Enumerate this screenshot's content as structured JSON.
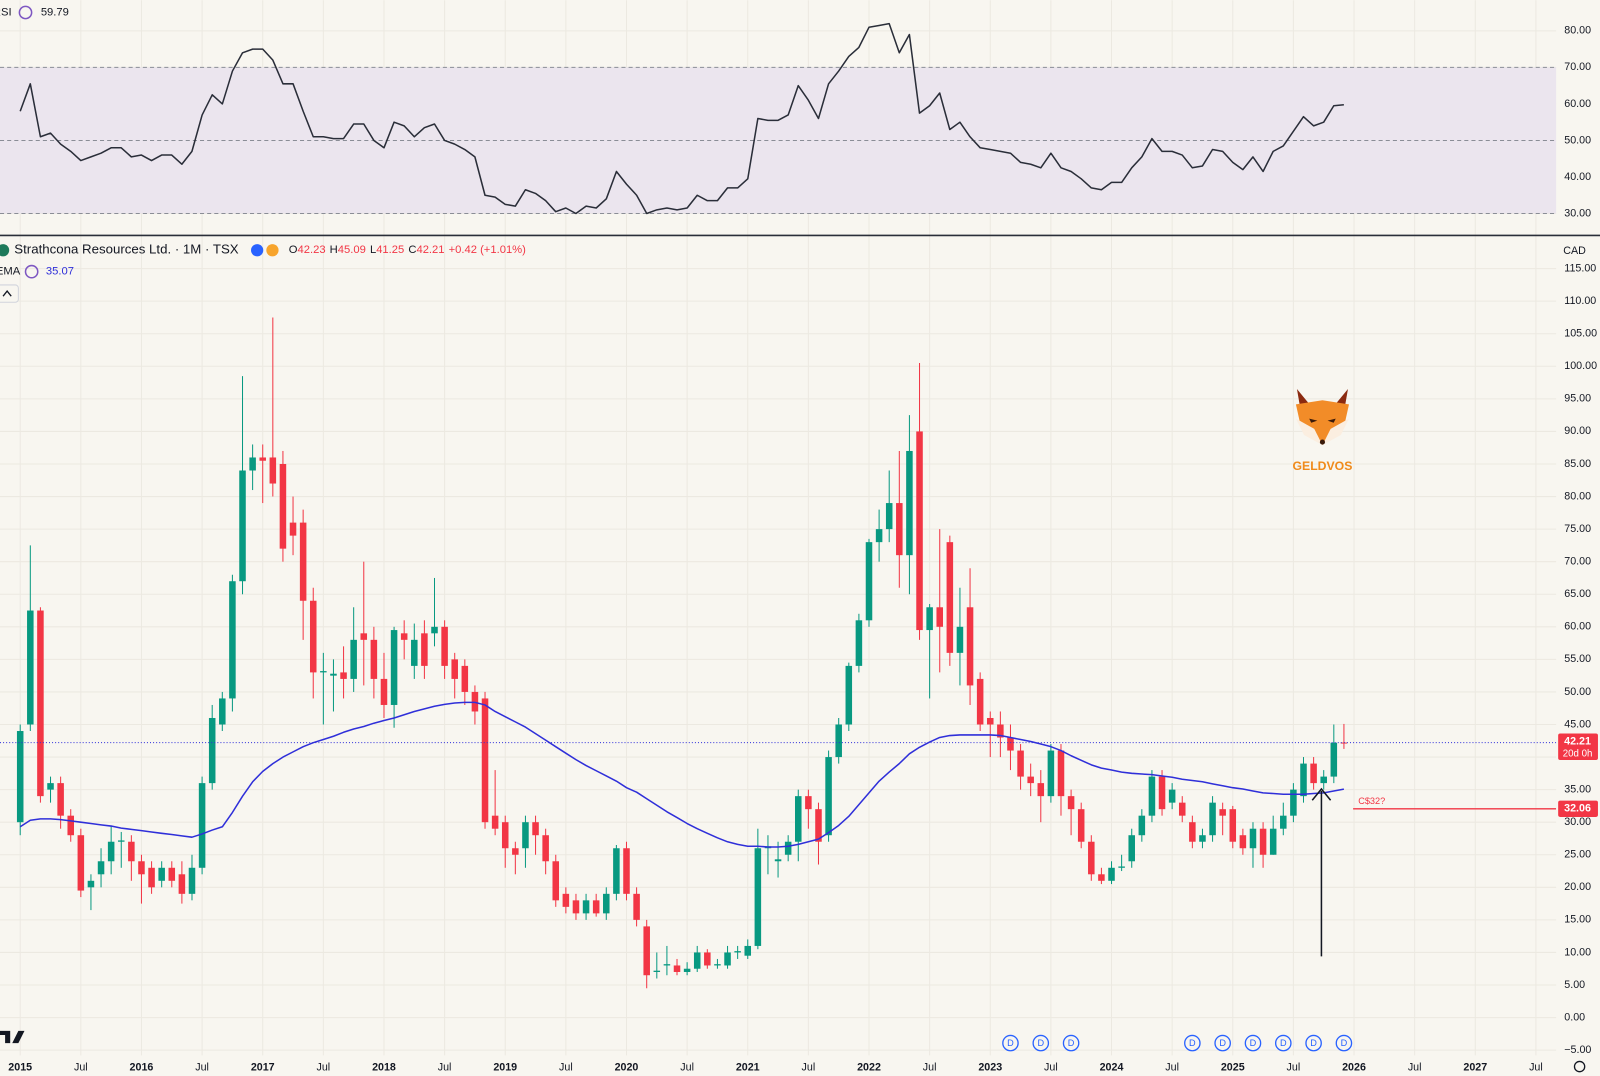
{
  "chart_data": {
    "type": "candlestick",
    "x": [
      "2015-01",
      "2015-02",
      "2015-03",
      "2015-04",
      "2015-05",
      "2015-06",
      "2015-07",
      "2015-08",
      "2015-09",
      "2015-10",
      "2015-11",
      "2015-12",
      "2016-01",
      "2016-02",
      "2016-03",
      "2016-04",
      "2016-05",
      "2016-06",
      "2016-07",
      "2016-08",
      "2016-09",
      "2016-10",
      "2016-11",
      "2016-12",
      "2017-01",
      "2017-02",
      "2017-03",
      "2017-04",
      "2017-05",
      "2017-06",
      "2017-07",
      "2017-08",
      "2017-09",
      "2017-10",
      "2017-11",
      "2017-12",
      "2018-01",
      "2018-02",
      "2018-03",
      "2018-04",
      "2018-05",
      "2018-06",
      "2018-07",
      "2018-08",
      "2018-09",
      "2018-10",
      "2018-11",
      "2018-12",
      "2019-01",
      "2019-02",
      "2019-03",
      "2019-04",
      "2019-05",
      "2019-06",
      "2019-07",
      "2019-08",
      "2019-09",
      "2019-10",
      "2019-11",
      "2019-12",
      "2020-01",
      "2020-02",
      "2020-03",
      "2020-04",
      "2020-05",
      "2020-06",
      "2020-07",
      "2020-08",
      "2020-09",
      "2020-10",
      "2020-11",
      "2020-12",
      "2021-01",
      "2021-02",
      "2021-03",
      "2021-04",
      "2021-05",
      "2021-06",
      "2021-07",
      "2021-08",
      "2021-09",
      "2021-10",
      "2021-11",
      "2021-12",
      "2022-01",
      "2022-02",
      "2022-03",
      "2022-04",
      "2022-05",
      "2022-06",
      "2022-07",
      "2022-08",
      "2022-09",
      "2022-10",
      "2022-11",
      "2022-12",
      "2023-01",
      "2023-02",
      "2023-03",
      "2023-04",
      "2023-05",
      "2023-06",
      "2023-07",
      "2023-08",
      "2023-09",
      "2023-10",
      "2023-11",
      "2023-12",
      "2024-01",
      "2024-02",
      "2024-03",
      "2024-04",
      "2024-05",
      "2024-06",
      "2024-07",
      "2024-08",
      "2024-09",
      "2024-10",
      "2024-11",
      "2024-12",
      "2025-01",
      "2025-02",
      "2025-03",
      "2025-04",
      "2025-05",
      "2025-06",
      "2025-07",
      "2025-08",
      "2025-09",
      "2025-10",
      "2025-11",
      "2025-12"
    ],
    "series": [
      {
        "name": "Strathcona Resources Ltd. · 1M · TSX",
        "type": "candlestick",
        "up_color": "#089981",
        "down_color": "#f23645",
        "ohlc_prefixes": [
          "O",
          "H",
          "L",
          "C"
        ],
        "change": {
          "value": 0.42,
          "label": "+0.42"
        },
        "change_percent": {
          "value": 1.01,
          "label": "(+1.01%)"
        },
        "countdown": "20d 0h",
        "open": [
          30,
          45,
          62.5,
          35,
          36,
          31,
          28,
          20,
          22,
          24,
          27,
          27,
          24,
          23,
          21,
          23,
          22,
          19,
          23,
          36,
          45,
          49,
          67,
          84,
          86,
          86,
          85,
          76,
          76,
          64,
          53,
          52.5,
          53,
          52,
          59,
          58,
          52,
          48,
          59,
          54,
          59,
          59,
          60,
          55,
          54,
          50,
          49,
          31,
          30,
          26,
          26,
          30,
          28,
          24,
          19,
          18,
          16,
          18,
          16,
          19,
          26,
          19,
          14,
          7,
          8,
          8,
          7,
          7.5,
          10,
          8,
          8,
          10,
          9.5,
          11,
          26,
          24,
          25,
          27,
          34,
          32,
          28,
          40,
          45,
          54,
          61,
          73,
          75,
          79,
          71,
          90,
          59.5,
          63,
          73,
          56,
          63,
          52,
          46,
          45,
          43,
          41,
          37,
          36,
          34,
          41,
          34,
          32,
          27,
          22,
          21,
          23,
          24,
          28,
          31,
          37,
          33,
          33,
          30,
          27,
          28,
          32,
          32,
          28,
          26,
          29,
          25,
          29,
          31,
          34,
          39,
          36,
          37,
          42.23
        ],
        "high": [
          45,
          72.5,
          63,
          37,
          37,
          32,
          29,
          22,
          26,
          29.5,
          28.5,
          28,
          25,
          24,
          24,
          24,
          24,
          25,
          37,
          48,
          50,
          68,
          98.5,
          88,
          88,
          107.5,
          87,
          80,
          78,
          66,
          56,
          55,
          57,
          63,
          70,
          60,
          56,
          60,
          61,
          60.5,
          61,
          67.5,
          61,
          56,
          55,
          51,
          50,
          38,
          31,
          27,
          31,
          31,
          29,
          25,
          20,
          19,
          19,
          19,
          20,
          26.5,
          27,
          20,
          15,
          10,
          11,
          9,
          8.5,
          11,
          10.5,
          9,
          11,
          11,
          12,
          29,
          28,
          27,
          28,
          35,
          35,
          33,
          41,
          46,
          54.5,
          62,
          73.5,
          78,
          84,
          87,
          92.5,
          100.5,
          63.5,
          75,
          74,
          66,
          69,
          53,
          47,
          47,
          45,
          42,
          39,
          38,
          42,
          42,
          35,
          33,
          28,
          23,
          24,
          25,
          29,
          32,
          38,
          38,
          36,
          34,
          31,
          29,
          34,
          33,
          32.5,
          29,
          30,
          30,
          31,
          33,
          36,
          40,
          40,
          38,
          45,
          45.09
        ],
        "low": [
          28,
          44,
          33,
          33,
          29,
          27,
          18.5,
          16.5,
          20,
          22,
          23,
          21,
          17.5,
          19,
          20,
          20,
          17.5,
          18,
          22,
          35,
          44,
          47,
          65,
          81,
          79,
          80,
          70,
          71,
          58,
          49,
          45,
          47,
          49,
          50,
          51,
          49,
          46,
          44.5,
          55,
          52,
          52,
          57,
          52,
          49,
          48,
          45,
          29,
          28,
          23,
          22,
          23,
          25,
          22,
          17,
          16,
          15,
          15,
          15.5,
          15,
          18,
          18,
          14,
          4.5,
          6,
          6.5,
          6.5,
          6.5,
          7,
          7.5,
          7.5,
          7.5,
          9,
          9,
          10.5,
          22,
          21.5,
          24,
          24,
          29,
          23.5,
          27,
          39,
          44,
          53,
          60,
          70,
          73,
          66,
          65,
          58,
          49,
          53,
          54,
          51,
          48,
          44,
          40,
          40,
          38,
          35,
          34,
          30,
          33,
          31,
          28,
          26,
          21,
          20.5,
          20.5,
          22.5,
          23,
          27,
          30,
          31,
          32,
          30,
          26,
          26,
          27,
          28,
          26,
          25,
          23,
          23,
          25,
          28,
          30,
          33,
          35,
          35,
          36,
          41.25
        ],
        "close": [
          44,
          62.5,
          34,
          36,
          31,
          28,
          19.5,
          21,
          24,
          27,
          27.2,
          24,
          22,
          20,
          23,
          21,
          19,
          23,
          36,
          46,
          49,
          67,
          84,
          86,
          85.5,
          82,
          72,
          74,
          64,
          53,
          53.2,
          52.8,
          52,
          58,
          58,
          52,
          48,
          59.5,
          58,
          58,
          54,
          60,
          54,
          52,
          50,
          47,
          30,
          29,
          26,
          25,
          30,
          28,
          24,
          18,
          17,
          16,
          18,
          16,
          19,
          26,
          19,
          15,
          6.5,
          7.2,
          8.2,
          7,
          7.5,
          10,
          8,
          8.2,
          10,
          10.2,
          11,
          26,
          26.3,
          24.3,
          27,
          34,
          32,
          27,
          40,
          45,
          54,
          61,
          73,
          75,
          79,
          71,
          87,
          59.5,
          63,
          60,
          56,
          60,
          51,
          45,
          45,
          43,
          41,
          37,
          36,
          34,
          41,
          34,
          32,
          27,
          22,
          21,
          23,
          23.2,
          28,
          31,
          37,
          32,
          35,
          31,
          27,
          28,
          33,
          31,
          27,
          26,
          29,
          25,
          29,
          31,
          35,
          39,
          36,
          37,
          42.2,
          42.21
        ]
      },
      {
        "name": "EMA",
        "type": "line",
        "color": "#2f2fd9",
        "values": [
          29.3,
          30.3,
          30.5,
          30.5,
          30.4,
          30.2,
          30,
          29.8,
          29.6,
          29.4,
          29.1,
          28.9,
          28.7,
          28.5,
          28.3,
          28.1,
          27.9,
          27.7,
          28.2,
          28.8,
          29.3,
          31.5,
          34,
          36.2,
          37.8,
          39,
          40,
          40.8,
          41.6,
          42.2,
          42.7,
          43.2,
          43.8,
          44.3,
          44.7,
          45.2,
          45.6,
          46,
          46.5,
          47,
          47.4,
          47.8,
          48.1,
          48.3,
          48.4,
          48.4,
          48,
          47,
          46.2,
          45.4,
          44.6,
          43.6,
          42.6,
          41.6,
          40.6,
          39.6,
          38.7,
          37.9,
          37.1,
          36.3,
          35.3,
          34.6,
          33.6,
          32.6,
          31.6,
          30.7,
          29.8,
          29,
          28.3,
          27.6,
          27,
          26.6,
          26.3,
          26.3,
          26.2,
          26.2,
          26.3,
          26.6,
          27,
          27.4,
          28.4,
          29.5,
          30.9,
          32.7,
          34.5,
          36.3,
          37.7,
          39,
          40.5,
          41.5,
          42.3,
          43,
          43.3,
          43.4,
          43.4,
          43.4,
          43.4,
          43.3,
          43,
          42.7,
          42.4,
          42,
          41.6,
          41,
          40.2,
          39.5,
          38.8,
          38.3,
          38,
          37.7,
          37.5,
          37.4,
          37.3,
          37.1,
          36.9,
          36.6,
          36.4,
          36.2,
          35.9,
          35.6,
          35.3,
          35.1,
          34.8,
          34.5,
          34.4,
          34.3,
          34.3,
          34.3,
          34.4,
          34.5,
          34.8,
          35.07
        ]
      }
    ],
    "currency": "CAD",
    "xlim": [
      "2014-11",
      "2027-09"
    ],
    "xticks": [
      {
        "value": "2015-01",
        "label": "2015"
      },
      {
        "value": "2015-07",
        "label": "Jul"
      },
      {
        "value": "2016-01",
        "label": "2016"
      },
      {
        "value": "2016-07",
        "label": "Jul"
      },
      {
        "value": "2017-01",
        "label": "2017"
      },
      {
        "value": "2017-07",
        "label": "Jul"
      },
      {
        "value": "2018-01",
        "label": "2018"
      },
      {
        "value": "2018-07",
        "label": "Jul"
      },
      {
        "value": "2019-01",
        "label": "2019"
      },
      {
        "value": "2019-07",
        "label": "Jul"
      },
      {
        "value": "2020-01",
        "label": "2020"
      },
      {
        "value": "2020-07",
        "label": "Jul"
      },
      {
        "value": "2021-01",
        "label": "2021"
      },
      {
        "value": "2021-07",
        "label": "Jul"
      },
      {
        "value": "2022-01",
        "label": "2022"
      },
      {
        "value": "2022-07",
        "label": "Jul"
      },
      {
        "value": "2023-01",
        "label": "2023"
      },
      {
        "value": "2023-07",
        "label": "Jul"
      },
      {
        "value": "2024-01",
        "label": "2024"
      },
      {
        "value": "2024-07",
        "label": "Jul"
      },
      {
        "value": "2025-01",
        "label": "2025"
      },
      {
        "value": "2025-07",
        "label": "Jul"
      },
      {
        "value": "2026-01",
        "label": "2026"
      },
      {
        "value": "2026-07",
        "label": "Jul"
      },
      {
        "value": "2027-01",
        "label": "2027"
      },
      {
        "value": "2027-07",
        "label": "Jul"
      }
    ],
    "ylim": [
      -5.8,
      119.7
    ],
    "yticks": [
      {
        "value": 115,
        "label": "115.00"
      },
      {
        "value": 110,
        "label": "110.00"
      },
      {
        "value": 105,
        "label": "105.00"
      },
      {
        "value": 100,
        "label": "100.00"
      },
      {
        "value": 95,
        "label": "95.00"
      },
      {
        "value": 90,
        "label": "90.00"
      },
      {
        "value": 85,
        "label": "85.00"
      },
      {
        "value": 80,
        "label": "80.00"
      },
      {
        "value": 75,
        "label": "75.00"
      },
      {
        "value": 70,
        "label": "70.00"
      },
      {
        "value": 65,
        "label": "65.00"
      },
      {
        "value": 60,
        "label": "60.00"
      },
      {
        "value": 55,
        "label": "55.00"
      },
      {
        "value": 50,
        "label": "50.00"
      },
      {
        "value": 45,
        "label": "45.00"
      },
      {
        "value": 40,
        "label": "40.00"
      },
      {
        "value": 35,
        "label": "35.00"
      },
      {
        "value": 30,
        "label": "30.00"
      },
      {
        "value": 25,
        "label": "25.00"
      },
      {
        "value": 20,
        "label": "20.00"
      },
      {
        "value": 15,
        "label": "15.00"
      },
      {
        "value": 10,
        "label": "10.00"
      },
      {
        "value": 5,
        "label": "5.00"
      },
      {
        "value": 0,
        "label": "0.00"
      },
      {
        "value": -5,
        "label": "−5.00"
      }
    ],
    "grid": true,
    "levels": [
      {
        "value": 32.06,
        "label": "C$32?",
        "color": "#f23645"
      }
    ],
    "dividends": {
      "label": "D",
      "x": [
        "2023-03",
        "2023-06",
        "2023-09",
        "2024-09",
        "2024-12",
        "2025-03",
        "2025-06",
        "2025-09",
        "2025-12"
      ]
    },
    "watermark": "GELDVOS",
    "indicator": {
      "type": "line",
      "name": "RSI",
      "color": "#2a2e39",
      "ylim": [
        24.4,
        88.4
      ],
      "yticks": [
        {
          "value": 80,
          "label": "80.00"
        },
        {
          "value": 70,
          "label": "70.00"
        },
        {
          "value": 60,
          "label": "60.00"
        },
        {
          "value": 50,
          "label": "50.00"
        },
        {
          "value": 40,
          "label": "40.00"
        },
        {
          "value": 30,
          "label": "30.00"
        }
      ],
      "band": [
        30,
        70
      ],
      "levels": [
        70,
        50,
        30
      ],
      "values": [
        58,
        65.5,
        51,
        52,
        49,
        47,
        44.5,
        45.5,
        46.5,
        48,
        48,
        45.5,
        46,
        44.5,
        46,
        46,
        43.5,
        47,
        57,
        62.5,
        60,
        69,
        74,
        75,
        75,
        72,
        65.5,
        65.5,
        58,
        51,
        51,
        50.5,
        50.5,
        54.5,
        54.5,
        50,
        48,
        55,
        54,
        51,
        53.5,
        54.5,
        50,
        49,
        47.5,
        45.5,
        35,
        34.5,
        32.5,
        32,
        36.5,
        35.5,
        33.5,
        30.5,
        31.5,
        30,
        32,
        31.5,
        34,
        41.5,
        38,
        35,
        30,
        31,
        31.5,
        31,
        31.5,
        35,
        33.5,
        33.5,
        37,
        37,
        39.5,
        56,
        55.5,
        55.5,
        57,
        65,
        61,
        56,
        65.5,
        69,
        73,
        75.5,
        81,
        81.5,
        82,
        74,
        79,
        57.5,
        59.5,
        63,
        53,
        55,
        51,
        48,
        47.5,
        47,
        46.5,
        44,
        43.5,
        42.5,
        46.5,
        42.5,
        41.5,
        39.5,
        37,
        36.5,
        38.5,
        38.5,
        42.5,
        45.5,
        50.5,
        47,
        47,
        46,
        42.5,
        43,
        47.5,
        47,
        44,
        42,
        45.5,
        41.5,
        47,
        48.5,
        52.5,
        56.5,
        54,
        55,
        59.5,
        59.79
      ]
    }
  }
}
